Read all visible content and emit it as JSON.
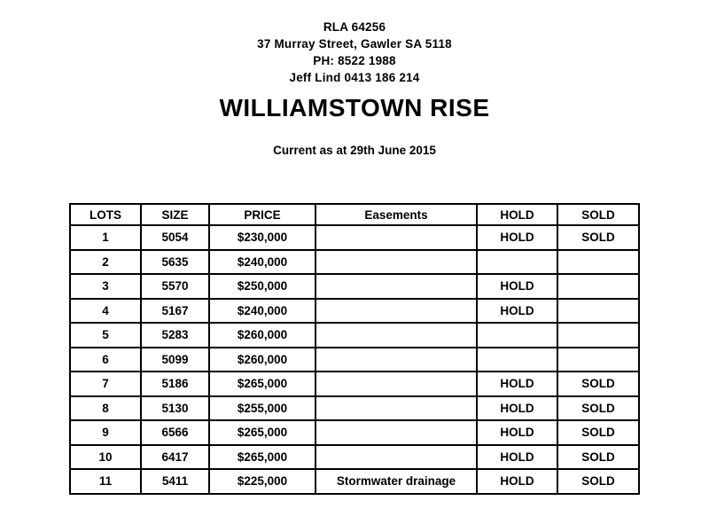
{
  "letterhead": {
    "lines": [
      "RLA 64256",
      "37 Murray Street, Gawler SA 5118",
      "PH: 8522 1988",
      "Jeff Lind 0413 186 214"
    ]
  },
  "title": "WILLIAMSTOWN RISE",
  "subtitle": "Current as at 29th June 2015",
  "table": {
    "columns": [
      "LOTS",
      "SIZE",
      "PRICE",
      "Easements",
      "HOLD",
      "SOLD"
    ],
    "rows": [
      [
        "1",
        "5054",
        "$230,000",
        "",
        "HOLD",
        "SOLD"
      ],
      [
        "2",
        "5635",
        "$240,000",
        "",
        "",
        ""
      ],
      [
        "3",
        "5570",
        "$250,000",
        "",
        "HOLD",
        ""
      ],
      [
        "4",
        "5167",
        "$240,000",
        "",
        "HOLD",
        ""
      ],
      [
        "5",
        "5283",
        "$260,000",
        "",
        "",
        ""
      ],
      [
        "6",
        "5099",
        "$260,000",
        "",
        "",
        ""
      ],
      [
        "7",
        "5186",
        "$265,000",
        "",
        "HOLD",
        "SOLD"
      ],
      [
        "8",
        "5130",
        "$255,000",
        "",
        "HOLD",
        "SOLD"
      ],
      [
        "9",
        "6566",
        "$265,000",
        "",
        "HOLD",
        "SOLD"
      ],
      [
        "10",
        "6417",
        "$265,000",
        "",
        "HOLD",
        "SOLD"
      ],
      [
        "11",
        "5411",
        "$225,000",
        "Stormwater drainage",
        "HOLD",
        "SOLD"
      ]
    ]
  },
  "colors": {
    "text": "#000000",
    "background": "#ffffff",
    "border": "#000000"
  }
}
